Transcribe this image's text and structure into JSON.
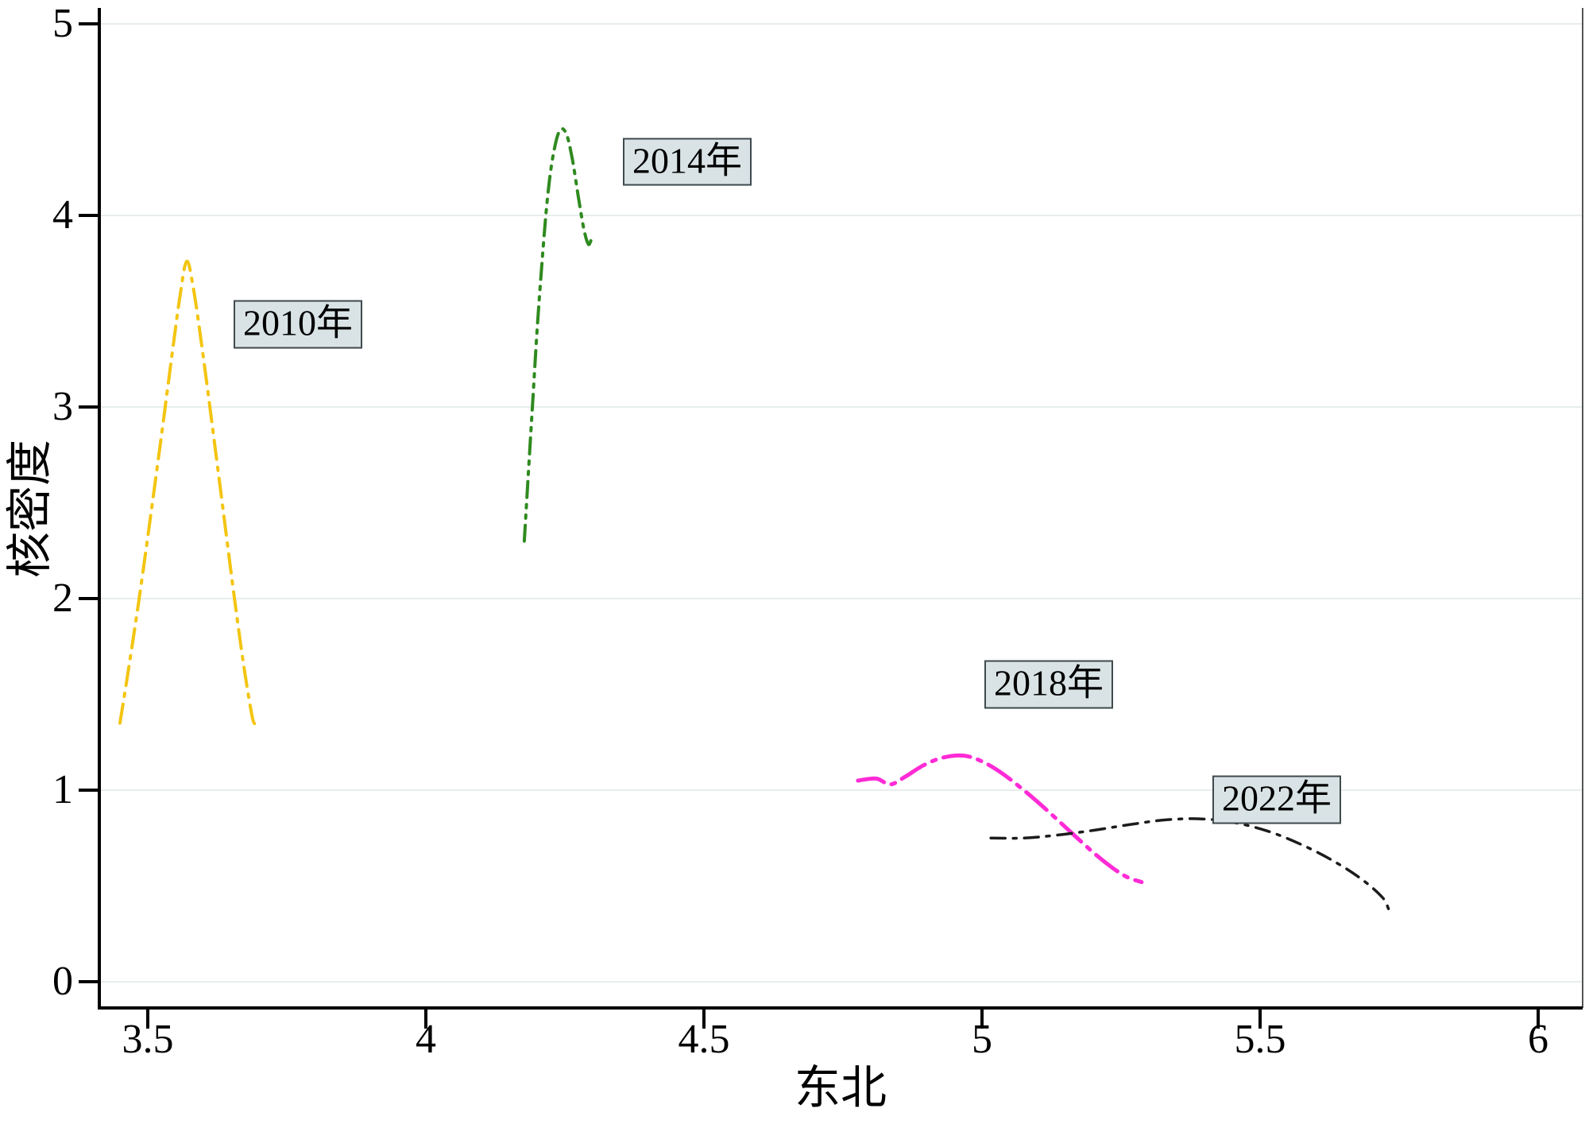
{
  "chart_data": {
    "type": "line",
    "subtype": "kernel-density",
    "title": "",
    "xlabel": "东北",
    "ylabel": "核密度",
    "xlim": [
      3.41,
      6.07
    ],
    "ylim": [
      0,
      5.15
    ],
    "xticks": [
      3.5,
      4,
      4.5,
      5,
      5.5,
      6
    ],
    "xtick_labels": [
      "3.5",
      "4",
      "4.5",
      "5",
      "5.5",
      "6"
    ],
    "yticks": [
      0,
      1,
      2,
      3,
      4,
      5
    ],
    "ytick_labels": [
      "0",
      "1",
      "2",
      "3",
      "4",
      "5"
    ],
    "grid": {
      "horizontal": true,
      "vertical": false,
      "color": "#E7EEEB"
    },
    "axis_color": "#000000",
    "label_box": {
      "fill": "#D9E3E5",
      "border": "#3F4A4E",
      "text_color": "#000000"
    },
    "series": [
      {
        "id": "2010",
        "name": "2010年",
        "color": "#F3C511",
        "dash": "24 10 4 10",
        "width": 4,
        "label_pos": {
          "x": 3.77,
          "y": 3.43
        },
        "points": [
          [
            3.45,
            1.35
          ],
          [
            3.468,
            1.68
          ],
          [
            3.487,
            2.05
          ],
          [
            3.506,
            2.45
          ],
          [
            3.525,
            2.86
          ],
          [
            3.543,
            3.26
          ],
          [
            3.558,
            3.58
          ],
          [
            3.57,
            3.76
          ],
          [
            3.582,
            3.62
          ],
          [
            3.598,
            3.3
          ],
          [
            3.617,
            2.88
          ],
          [
            3.636,
            2.45
          ],
          [
            3.655,
            2.02
          ],
          [
            3.672,
            1.66
          ],
          [
            3.688,
            1.38
          ],
          [
            3.694,
            1.35
          ]
        ]
      },
      {
        "id": "2014",
        "name": "2014年",
        "color": "#2F8A1F",
        "dash": "20 9 4 9 4 9",
        "width": 4,
        "label_pos": {
          "x": 4.47,
          "y": 4.28
        },
        "points": [
          [
            4.177,
            2.3
          ],
          [
            4.184,
            2.64
          ],
          [
            4.192,
            3.02
          ],
          [
            4.2,
            3.4
          ],
          [
            4.209,
            3.76
          ],
          [
            4.218,
            4.07
          ],
          [
            4.228,
            4.3
          ],
          [
            4.24,
            4.44
          ],
          [
            4.252,
            4.43
          ],
          [
            4.263,
            4.3
          ],
          [
            4.274,
            4.1
          ],
          [
            4.284,
            3.93
          ],
          [
            4.292,
            3.85
          ],
          [
            4.297,
            3.87
          ]
        ]
      },
      {
        "id": "2018",
        "name": "2018年",
        "color": "#FF2BD6",
        "dash": "34 10 5 10",
        "width": 5,
        "label_pos": {
          "x": 5.12,
          "y": 1.55
        },
        "points": [
          [
            4.777,
            1.05
          ],
          [
            4.81,
            1.06
          ],
          [
            4.835,
            1.03
          ],
          [
            4.862,
            1.07
          ],
          [
            4.895,
            1.13
          ],
          [
            4.93,
            1.17
          ],
          [
            4.967,
            1.18
          ],
          [
            5.0,
            1.15
          ],
          [
            5.035,
            1.09
          ],
          [
            5.075,
            1.0
          ],
          [
            5.115,
            0.9
          ],
          [
            5.16,
            0.78
          ],
          [
            5.21,
            0.65
          ],
          [
            5.255,
            0.555
          ],
          [
            5.287,
            0.52
          ]
        ]
      },
      {
        "id": "2022",
        "name": "2022年",
        "color": "#1C1C1C",
        "dash": "18 10 4 10",
        "width": 3.5,
        "label_pos": {
          "x": 5.53,
          "y": 0.95
        },
        "points": [
          [
            5.016,
            0.75
          ],
          [
            5.075,
            0.75
          ],
          [
            5.135,
            0.765
          ],
          [
            5.2,
            0.79
          ],
          [
            5.265,
            0.82
          ],
          [
            5.33,
            0.845
          ],
          [
            5.395,
            0.85
          ],
          [
            5.455,
            0.83
          ],
          [
            5.515,
            0.785
          ],
          [
            5.575,
            0.715
          ],
          [
            5.635,
            0.625
          ],
          [
            5.685,
            0.53
          ],
          [
            5.72,
            0.44
          ],
          [
            5.731,
            0.38
          ]
        ]
      }
    ]
  }
}
